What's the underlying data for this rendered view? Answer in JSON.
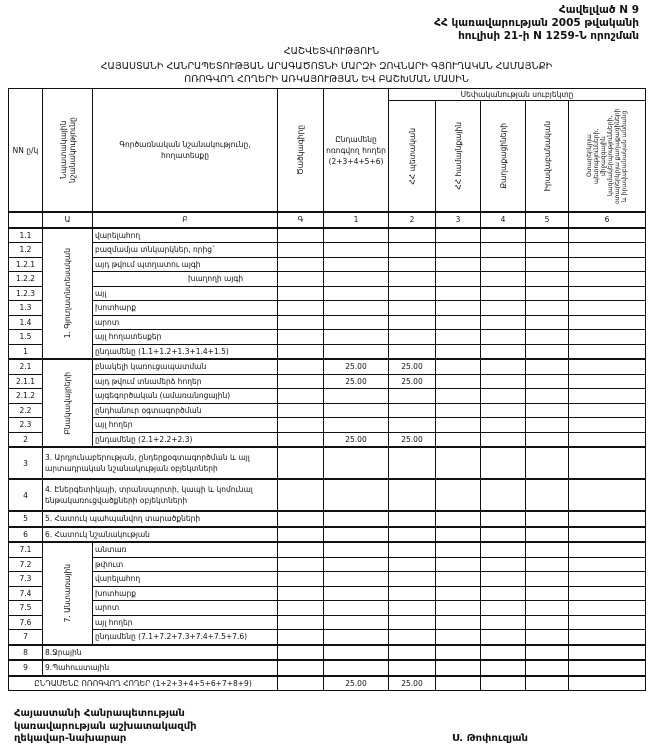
{
  "annex": {
    "line1": "Հավելված N 9",
    "line2": "ՀՀ կառավարության 2005 թվականի",
    "line3": "հուլիսի 21-ի N 1259-Ն որոշման"
  },
  "title": {
    "heading": "ՀԱՇՎԵՏՎՈՒԹՅՈՒՆ",
    "line1": "ՀԱՅԱՍՏԱՆԻ ՀԱՆՐԱՊԵՏՈՒԹՅԱՆ ԱՐԱԳԱԾՈՏՆԻ ՄԱՐԶԻ ԶՈՎՆԱՐԻ ԳՅՈՒՂԱԿԱՆ ՀԱՄԱՅՆՔԻ",
    "line2": "ՈՌՈԳՎՈՂ ՀՈՂԵՐԻ ԱՌԿԱՅՈՒԹՅԱՆ ԵՎ ԲԱՇԽՄԱՆ ՄԱՍԻՆ"
  },
  "table": {
    "headers": {
      "nn": "NN ը/կ",
      "purpose": "Նպատակային նշանակությունը",
      "function": "Գործառնական նշանակությունը, հողատեսքը",
      "code": "Ծածկագիրը",
      "total": "Ընդամենը ոռոգվող հողեր (2+3+4+5+6)",
      "owner_group": "Սեփականության սուբյեկտը",
      "state": "ՀՀ պետական",
      "community": "ՀՀ համայնքային",
      "citizens": "Քաղաքացիների",
      "legal": "Իրավաբանական",
      "foreign": "Օտարերկրյա պետությունների, միջազգային կազմակերպությունների, օտարերկրյա քաղաքացիների և իրավաբանական անձանց"
    },
    "index_row": [
      "",
      "Ա",
      "Բ",
      "Գ",
      "1",
      "2",
      "3",
      "4",
      "5",
      "6"
    ],
    "groups": [
      {
        "label": "1. Գյուղատնտեսական",
        "start": "1.1",
        "span": 9
      },
      {
        "label": "Բնակավայրերի",
        "start": "2.1",
        "span": 6
      },
      {
        "label": "7. Անտառային",
        "start": "7.1",
        "span": 7
      }
    ],
    "rows": [
      {
        "nn": "1.1",
        "text": "վարելահող",
        "vals": [
          "",
          "",
          "",
          "",
          "",
          "",
          ""
        ]
      },
      {
        "nn": "1.2",
        "text": "բազմամյա տնկարկներ, որից`",
        "vals": [
          "",
          "",
          "",
          "",
          "",
          "",
          ""
        ]
      },
      {
        "nn": "1.2.1",
        "text": "այդ թվում      պտղատու այգի",
        "vals": [
          "",
          "",
          "",
          "",
          "",
          "",
          ""
        ]
      },
      {
        "nn": "1.2.2",
        "text": "խաղողի այգի",
        "indent": true,
        "vals": [
          "",
          "",
          "",
          "",
          "",
          "",
          ""
        ]
      },
      {
        "nn": "1.2.3",
        "text": "այլ",
        "vals": [
          "",
          "",
          "",
          "",
          "",
          "",
          ""
        ]
      },
      {
        "nn": "1.3",
        "text": "խոտհարք",
        "vals": [
          "",
          "",
          "",
          "",
          "",
          "",
          ""
        ]
      },
      {
        "nn": "1.4",
        "text": "արոտ",
        "vals": [
          "",
          "",
          "",
          "",
          "",
          "",
          ""
        ]
      },
      {
        "nn": "1.5",
        "text": "այլ հողատեսքեր",
        "vals": [
          "",
          "",
          "",
          "",
          "",
          "",
          ""
        ]
      },
      {
        "nn": "1",
        "text": "ընդամենը (1.1+1.2+1.3+1.4+1.5)",
        "vals": [
          "",
          "",
          "",
          "",
          "",
          "",
          ""
        ]
      },
      {
        "nn": "2.1",
        "text": "բնակելի կառուցապատման",
        "vals": [
          "",
          "25.00",
          "25.00",
          "",
          "",
          "",
          ""
        ]
      },
      {
        "nn": "2.1.1",
        "text": "այդ թվում տնամերձ հողեր",
        "vals": [
          "",
          "25.00",
          "25.00",
          "",
          "",
          "",
          ""
        ]
      },
      {
        "nn": "2.1.2",
        "text": "այգեգործական (ամառանոցային)",
        "vals": [
          "",
          "",
          "",
          "",
          "",
          "",
          ""
        ]
      },
      {
        "nn": "2.2",
        "text": "ընդհանուր օգտագործման",
        "vals": [
          "",
          "",
          "",
          "",
          "",
          "",
          ""
        ]
      },
      {
        "nn": "2.3",
        "text": "այլ հողեր",
        "vals": [
          "",
          "",
          "",
          "",
          "",
          "",
          ""
        ]
      },
      {
        "nn": "2",
        "text": "ընդամենը (2.1+2.2+2.3)",
        "vals": [
          "",
          "25.00",
          "25.00",
          "",
          "",
          "",
          ""
        ]
      },
      {
        "nn": "3",
        "text": "3. Արդյունաբերության, ընդերքօգտագործման և այլ արտադրական նշանակության օբյեկտների",
        "wide": true,
        "tall": true,
        "vals": [
          "",
          "",
          "",
          "",
          "",
          "",
          ""
        ]
      },
      {
        "nn": "4",
        "text": "4. Էներգետիկայի, տրանսպորտի, կապի և կոմունալ ենթակառուցվածքների օբյեկտների",
        "wide": true,
        "tall": true,
        "vals": [
          "",
          "",
          "",
          "",
          "",
          "",
          ""
        ]
      },
      {
        "nn": "5",
        "text": "5. Հատուկ պահպանվող տարածքների",
        "wide": true,
        "vals": [
          "",
          "",
          "",
          "",
          "",
          "",
          ""
        ]
      },
      {
        "nn": "6",
        "text": "6. Հատուկ նշանակության",
        "wide": true,
        "vals": [
          "",
          "",
          "",
          "",
          "",
          "",
          ""
        ]
      },
      {
        "nn": "7.1",
        "text": "անտառ",
        "vals": [
          "",
          "",
          "",
          "",
          "",
          "",
          ""
        ]
      },
      {
        "nn": "7.2",
        "text": "թփուտ",
        "vals": [
          "",
          "",
          "",
          "",
          "",
          "",
          ""
        ]
      },
      {
        "nn": "7.3",
        "text": "վարելահող",
        "vals": [
          "",
          "",
          "",
          "",
          "",
          "",
          ""
        ]
      },
      {
        "nn": "7.4",
        "text": "խոտհարք",
        "vals": [
          "",
          "",
          "",
          "",
          "",
          "",
          ""
        ]
      },
      {
        "nn": "7.5",
        "text": "արոտ",
        "vals": [
          "",
          "",
          "",
          "",
          "",
          "",
          ""
        ]
      },
      {
        "nn": "7.6",
        "text": "այլ հողեր",
        "vals": [
          "",
          "",
          "",
          "",
          "",
          "",
          ""
        ]
      },
      {
        "nn": "7",
        "text": "ընդամենը (7.1+7.2+7.3+7.4+7.5+7.6)",
        "vals": [
          "",
          "",
          "",
          "",
          "",
          "",
          ""
        ]
      },
      {
        "nn": "8",
        "text": "8.Ջրային",
        "wide": true,
        "vals": [
          "",
          "",
          "",
          "",
          "",
          "",
          ""
        ]
      },
      {
        "nn": "9",
        "text": "9.Պահուստային",
        "wide": true,
        "vals": [
          "",
          "",
          "",
          "",
          "",
          "",
          ""
        ]
      }
    ],
    "grand_total": {
      "text": "ԸՆԴԱՄԵՆԸ ՈՌՈԳՎՈՂ ՀՈՂԵՐ (1+2+3+4+5+6+7+8+9)",
      "vals": [
        "",
        "25.00",
        "25.00",
        "",
        "",
        "",
        ""
      ]
    }
  },
  "footer": {
    "line1": "Հայաստանի Հանրապետության",
    "line2": "կառավարության աշխատակազմի",
    "line3": "ղեկավար-նախարար",
    "signatory": "Ս. Թոփուզյան"
  }
}
